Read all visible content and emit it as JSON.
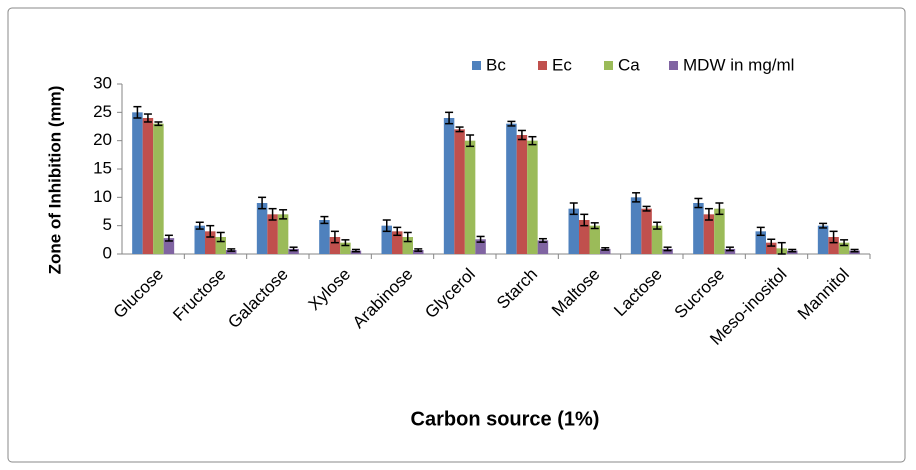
{
  "chart_data": {
    "type": "bar",
    "y_label": "Zone of Inhibition (mm)",
    "x_label": "Carbon source (1%)",
    "categories": [
      "Glucose",
      "Fructose",
      "Galactose",
      "Xylose",
      "Arabinose",
      "Glycerol",
      "Starch",
      "Maltose",
      "Lactose",
      "Sucrose",
      "Meso-inositol",
      "Mannitol"
    ],
    "series": [
      {
        "name": "Bc",
        "color": "#4f81bd",
        "values": [
          25,
          5,
          9,
          6,
          5,
          24,
          23,
          8,
          10,
          9,
          4,
          5
        ],
        "errors": [
          1,
          0.6,
          1,
          0.6,
          1,
          1,
          0.4,
          1,
          0.8,
          0.8,
          0.7,
          0.4
        ]
      },
      {
        "name": "Ec",
        "color": "#c0504d",
        "values": [
          24,
          4,
          7,
          3,
          4,
          22,
          21,
          6,
          8,
          7,
          2,
          3
        ],
        "errors": [
          0.7,
          1,
          1,
          1,
          0.7,
          0.4,
          0.8,
          1,
          0.4,
          1,
          0.6,
          1
        ]
      },
      {
        "name": "Ca",
        "color": "#9bbb59",
        "values": [
          23,
          3,
          7,
          2,
          3,
          20,
          20,
          5,
          5,
          8,
          1,
          2
        ],
        "errors": [
          0.3,
          0.8,
          0.8,
          0.5,
          0.8,
          1,
          0.7,
          0.5,
          0.6,
          1,
          1,
          0.5
        ]
      },
      {
        "name": "MDW in mg/ml",
        "color": "#8064a2",
        "values": [
          2.8,
          0.7,
          0.9,
          0.6,
          0.7,
          2.6,
          2.4,
          0.9,
          0.9,
          0.9,
          0.6,
          0.6
        ],
        "errors": [
          0.5,
          0.2,
          0.3,
          0.2,
          0.2,
          0.5,
          0.3,
          0.2,
          0.3,
          0.3,
          0.2,
          0.2
        ]
      }
    ],
    "ylim": [
      0,
      30
    ],
    "yticks": [
      0,
      5,
      10,
      15,
      20,
      25,
      30
    ],
    "grid": false,
    "legend": "top-right"
  }
}
